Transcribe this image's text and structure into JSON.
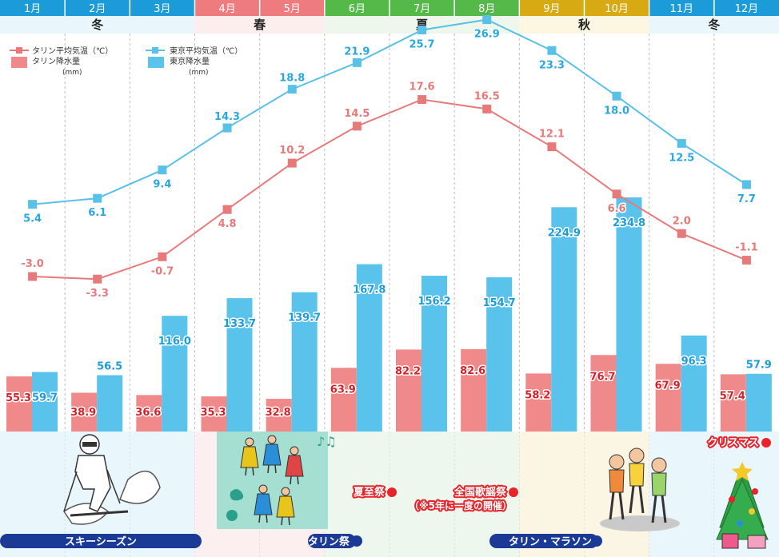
{
  "chart_data": {
    "type": "bar+line",
    "title": "",
    "categories": [
      "1月",
      "2月",
      "3月",
      "4月",
      "5月",
      "6月",
      "7月",
      "8月",
      "9月",
      "10月",
      "11月",
      "12月"
    ],
    "seasons": [
      {
        "label": "冬",
        "start": 0,
        "end": 3,
        "header_color": "#1b9bd7",
        "band_color": "#e9f6fc"
      },
      {
        "label": "春",
        "start": 3,
        "end": 5,
        "header_color": "#ee7b7d",
        "band_color": "#fdeeee"
      },
      {
        "label": "夏",
        "start": 5,
        "end": 8,
        "header_color": "#55b949",
        "band_color": "#eef7ec"
      },
      {
        "label": "秋",
        "start": 8,
        "end": 10,
        "header_color": "#d7aa14",
        "band_color": "#fdf6e0"
      },
      {
        "label": "冬",
        "start": 10,
        "end": 12,
        "header_color": "#1b9bd7",
        "band_color": "#e9f6fc"
      }
    ],
    "series": [
      {
        "name": "タリン平均気温（℃）",
        "kind": "line",
        "color": "#e8797b",
        "values": [
          -3.0,
          -3.3,
          -0.7,
          4.8,
          10.2,
          14.5,
          17.6,
          16.5,
          12.1,
          6.6,
          2.0,
          -1.1
        ],
        "labels": [
          "-3.0",
          "-3.3",
          "-0.7",
          "4.8",
          "10.2",
          "14.5",
          "17.6",
          "16.5",
          "12.1",
          "6.6",
          "2.0",
          "-1.1"
        ]
      },
      {
        "name": "東京平均気温（℃）",
        "kind": "line",
        "color": "#59c0e8",
        "values": [
          5.4,
          6.1,
          9.4,
          14.3,
          18.8,
          21.9,
          25.7,
          26.9,
          23.3,
          18.0,
          12.5,
          7.7
        ],
        "labels": [
          "5.4",
          "6.1",
          "9.4",
          "14.3",
          "18.8",
          "21.9",
          "25.7",
          "26.9",
          "23.3",
          "18.0",
          "12.5",
          "7.7"
        ]
      },
      {
        "name": "タリン降水量",
        "unit": "(mm)",
        "kind": "bar",
        "color": "#f08a8a",
        "values": [
          55.3,
          38.9,
          36.6,
          35.3,
          32.8,
          63.9,
          82.2,
          82.6,
          58.2,
          76.7,
          67.9,
          57.4
        ],
        "labels": [
          "55.3",
          "38.9",
          "36.6",
          "35.3",
          "32.8",
          "63.9",
          "82.2",
          "82.6",
          "58.2",
          "76.7",
          "67.9",
          "57.4"
        ]
      },
      {
        "name": "東京降水量",
        "unit": "(mm)",
        "kind": "bar",
        "color": "#59c3eb",
        "values": [
          59.7,
          56.5,
          116.0,
          133.7,
          139.7,
          167.8,
          156.2,
          154.7,
          224.9,
          234.8,
          96.3,
          57.9
        ],
        "labels": [
          "59.7",
          "56.5",
          "116.0",
          "133.7",
          "139.7",
          "167.8",
          "156.2",
          "154.7",
          "224.9",
          "234.8",
          "96.3",
          "57.9"
        ]
      }
    ],
    "events": [
      {
        "label": "スキーシーズン",
        "style": "bar",
        "color": "#1a3a96"
      },
      {
        "label": "タリン祭",
        "style": "bar",
        "color": "#1a3a96"
      },
      {
        "label": "夏至祭",
        "style": "tag",
        "color": "#e8232a"
      },
      {
        "label": "全国歌謡祭",
        "sublabel": "（※5年に一度の開催）",
        "style": "tag",
        "color": "#e8232a"
      },
      {
        "label": "タリン・マラソン",
        "style": "bar",
        "color": "#1a3a96"
      },
      {
        "label": "クリスマス",
        "style": "tag",
        "color": "#e8232a"
      }
    ],
    "illustrations": [
      "skier",
      "folk-dancers",
      "marathon-runners",
      "christmas-tree"
    ],
    "xlabel": "",
    "ylabel": "",
    "temp_range": [
      -10,
      30
    ],
    "precip_range": [
      0,
      300
    ]
  }
}
